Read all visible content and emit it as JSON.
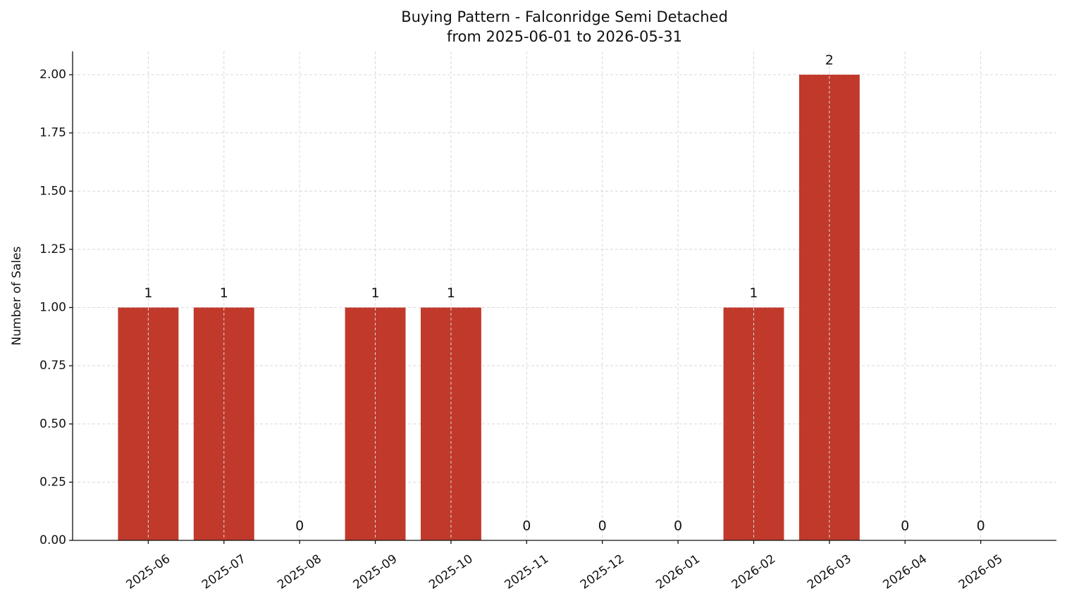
{
  "chart_data": {
    "type": "bar",
    "title": "Buying Pattern - Falconridge Semi Detached",
    "subtitle": "from 2025-06-01 to 2026-05-31",
    "y_label": "Number of Sales",
    "categories": [
      "2025-06",
      "2025-07",
      "2025-08",
      "2025-09",
      "2025-10",
      "2025-11",
      "2025-12",
      "2026-01",
      "2026-02",
      "2026-03",
      "2026-04",
      "2026-05"
    ],
    "values": [
      1,
      1,
      0,
      1,
      1,
      0,
      0,
      0,
      1,
      2,
      0,
      0
    ],
    "color": "#c0392b",
    "ylim": [
      0,
      2.1
    ],
    "yticks": [
      {
        "value": 0,
        "label": "0.00"
      },
      {
        "value": 0.25,
        "label": "0.25"
      },
      {
        "value": 0.5,
        "label": "0.50"
      },
      {
        "value": 0.75,
        "label": "0.75"
      },
      {
        "value": 1,
        "label": "1.00"
      },
      {
        "value": 1.25,
        "label": "1.25"
      },
      {
        "value": 1.5,
        "label": "1.50"
      },
      {
        "value": 1.75,
        "label": "1.75"
      },
      {
        "value": 2,
        "label": "2.00"
      }
    ],
    "grid": true
  }
}
